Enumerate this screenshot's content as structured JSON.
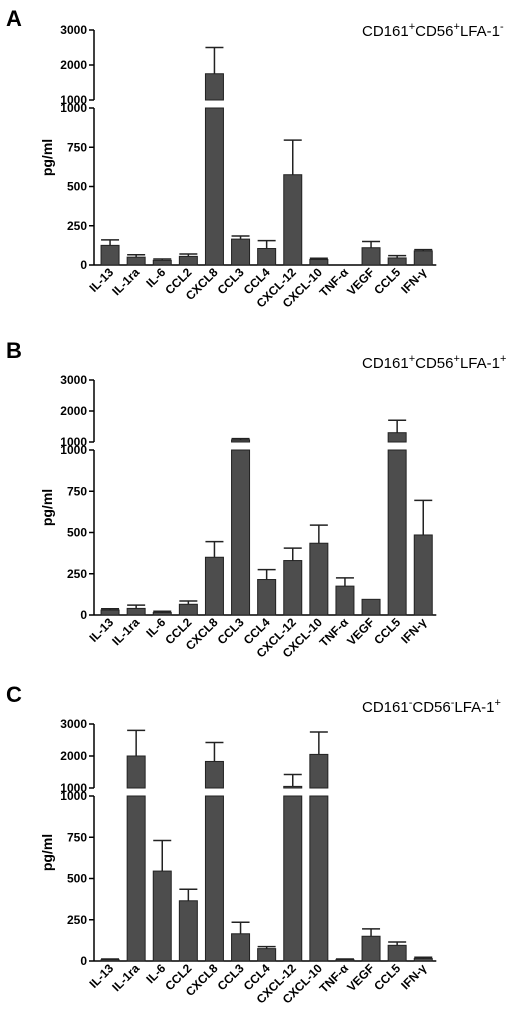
{
  "chart_data": [
    {
      "type": "bar",
      "panel_label": "A",
      "title_parts": [
        [
          "CD161",
          ""
        ],
        [
          "+",
          "sup"
        ],
        [
          "CD56",
          ""
        ],
        [
          "+",
          "sup"
        ],
        [
          "LFA-1",
          ""
        ],
        [
          "-",
          "sup"
        ]
      ],
      "ylabel": "pg/ml",
      "y_scale": "broken",
      "lower_ylim": [
        0,
        1000
      ],
      "upper_ylim": [
        1000,
        3000
      ],
      "lower_ticks": [
        "0",
        "250",
        "500",
        "750",
        "1000"
      ],
      "upper_ticks": [
        "1000",
        "2000",
        "3000"
      ],
      "categories": [
        "IL-13",
        "IL-1ra",
        "IL-6",
        "CCL2",
        "CXCL8",
        "CCL3",
        "CCL4",
        "CXCL-12",
        "CXCL-10",
        "TNF-α",
        "VEGF",
        "CCL5",
        "IFN-γ"
      ],
      "values": [
        125,
        50,
        30,
        55,
        1750,
        165,
        105,
        575,
        35,
        0,
        110,
        45,
        90
      ],
      "errors": [
        35,
        15,
        8,
        15,
        750,
        20,
        50,
        220,
        8,
        0,
        40,
        15,
        8
      ]
    },
    {
      "type": "bar",
      "panel_label": "B",
      "title_parts": [
        [
          "CD161",
          ""
        ],
        [
          "+",
          "sup"
        ],
        [
          "CD56",
          ""
        ],
        [
          "+",
          "sup"
        ],
        [
          "LFA-1",
          ""
        ],
        [
          "+",
          "sup"
        ]
      ],
      "ylabel": "pg/ml",
      "y_scale": "broken",
      "lower_ylim": [
        0,
        1000
      ],
      "upper_ylim": [
        1000,
        3000
      ],
      "lower_ticks": [
        "0",
        "250",
        "500",
        "750",
        "1000"
      ],
      "upper_ticks": [
        "1000",
        "2000",
        "3000"
      ],
      "categories": [
        "IL-13",
        "IL-1ra",
        "IL-6",
        "CCL2",
        "CXCL8",
        "CCL3",
        "CCL4",
        "CXCL-12",
        "CXCL-10",
        "TNF-α",
        "VEGF",
        "CCL5",
        "IFN-γ"
      ],
      "values": [
        30,
        40,
        15,
        65,
        350,
        1070,
        215,
        330,
        435,
        175,
        95,
        1300,
        485
      ],
      "errors": [
        8,
        20,
        8,
        20,
        95,
        40,
        60,
        75,
        110,
        50,
        0,
        400,
        210
      ]
    },
    {
      "type": "bar",
      "panel_label": "C",
      "title_parts": [
        [
          "CD161",
          ""
        ],
        [
          "-",
          "sup"
        ],
        [
          "CD56",
          ""
        ],
        [
          "-",
          "sup"
        ],
        [
          "LFA-1",
          ""
        ],
        [
          "+",
          "sup"
        ]
      ],
      "ylabel": "pg/ml",
      "y_scale": "broken",
      "lower_ylim": [
        0,
        1000
      ],
      "upper_ylim": [
        1000,
        3000
      ],
      "lower_ticks": [
        "0",
        "250",
        "500",
        "750",
        "1000"
      ],
      "upper_ticks": [
        "1000",
        "2000",
        "3000"
      ],
      "categories": [
        "IL-13",
        "IL-1ra",
        "IL-6",
        "CCL2",
        "CXCL8",
        "CCL3",
        "CCL4",
        "CXCL-12",
        "CXCL-10",
        "TNF-α",
        "VEGF",
        "CCL5",
        "IFN-γ"
      ],
      "values": [
        8,
        2000,
        545,
        365,
        1830,
        165,
        75,
        1050,
        2050,
        8,
        150,
        95,
        15
      ],
      "errors": [
        4,
        800,
        185,
        70,
        590,
        70,
        12,
        370,
        700,
        4,
        45,
        20,
        8
      ]
    }
  ]
}
